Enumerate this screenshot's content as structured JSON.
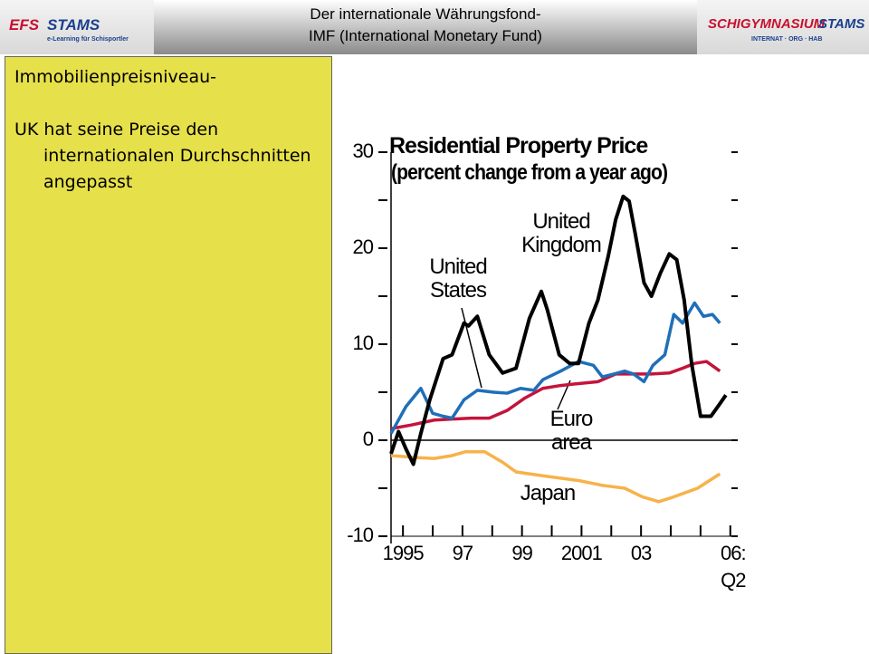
{
  "header": {
    "title_line1": "Der internationale Währungsfond-",
    "title_line2": "IMF (International Monetary Fund)",
    "logo_left": {
      "main1": "EFS",
      "main2": "STAMS",
      "tagline": "e-Learning für Schisportler"
    },
    "logo_right": {
      "main1": "SCHIGYMNASIUM",
      "main2": "STAMS",
      "tagline": "INTERNAT · ORG · HAB"
    }
  },
  "textbox": {
    "heading": "Immobilienpreisniveau-",
    "bullet": "UK hat seine Preise den internationalen Durchschnitten angepasst"
  },
  "chart_data": {
    "type": "line",
    "title": "Residential Property Price",
    "subtitle": "(percent change from a year ago)",
    "xlim": [
      1994.6,
      2006.25
    ],
    "ylim": [
      -10,
      30
    ],
    "yticks": [
      30,
      20,
      10,
      0,
      -10
    ],
    "yminor": [
      25,
      15,
      5,
      -5
    ],
    "xticks": [
      {
        "value": 1995,
        "label": "1995"
      },
      {
        "value": 1997,
        "label": "97"
      },
      {
        "value": 1999,
        "label": "99"
      },
      {
        "value": 2001,
        "label": "2001"
      },
      {
        "value": 2003,
        "label": "03"
      },
      {
        "value": 2006,
        "label": "06: Q2"
      }
    ],
    "xminor": [
      1996,
      1998,
      2000,
      2002,
      2004,
      2005
    ],
    "zero_line": true,
    "series": [
      {
        "name": "United Kingdom",
        "color": "#000000",
        "x": [
          1994.6,
          1994.85,
          1995.1,
          1995.35,
          1995.6,
          1995.9,
          1996.35,
          1996.65,
          1997.05,
          1997.2,
          1997.5,
          1997.9,
          1998.35,
          1998.8,
          1999.25,
          1999.65,
          1999.85,
          2000.25,
          2000.6,
          2000.9,
          2001.25,
          2001.55,
          2001.9,
          2002.15,
          2002.4,
          2002.6,
          2002.8,
          2003.1,
          2003.35,
          2003.65,
          2003.95,
          2004.2,
          2004.45,
          2004.7,
          2005.0,
          2005.35,
          2005.65,
          2005.85
        ],
        "values": [
          -1.4,
          0.9,
          -0.9,
          -2.5,
          0.7,
          4.2,
          8.5,
          8.9,
          12.2,
          11.9,
          12.9,
          8.9,
          7,
          7.5,
          12.7,
          15.5,
          13.6,
          8.9,
          8,
          8,
          12.2,
          14.6,
          19.2,
          23,
          25.4,
          24.9,
          21.6,
          16.4,
          15,
          17.4,
          19.4,
          18.8,
          14.6,
          8,
          2.5,
          2.5,
          3.8,
          4.7
        ]
      },
      {
        "name": "United States",
        "color": "#1f6fb8",
        "x": [
          1994.6,
          1995.1,
          1995.6,
          1996.0,
          1996.35,
          1996.65,
          1997.05,
          1997.5,
          1998.05,
          1998.5,
          1998.95,
          1999.4,
          1999.7,
          2000.3,
          2000.9,
          2001.4,
          2001.7,
          2002.1,
          2002.45,
          2002.75,
          2003.1,
          2003.4,
          2003.8,
          2004.1,
          2004.4,
          2004.8,
          2005.1,
          2005.4,
          2005.65
        ],
        "values": [
          0.7,
          3.5,
          5.4,
          2.8,
          2.5,
          2.3,
          4.2,
          5.2,
          5.0,
          4.9,
          5.4,
          5.2,
          6.3,
          7.2,
          8.2,
          7.8,
          6.6,
          6.9,
          7.2,
          6.9,
          6.1,
          7.8,
          8.9,
          13.1,
          12.2,
          14.3,
          12.9,
          13.1,
          12.2
        ]
      },
      {
        "name": "Euro area",
        "color": "#c4143c",
        "x": [
          1994.6,
          1995.3,
          1996.05,
          1996.65,
          1997.3,
          1997.9,
          1998.5,
          1999.1,
          1999.7,
          2000.3,
          2000.9,
          2001.55,
          2002.15,
          2002.75,
          2003.35,
          2003.95,
          2004.4,
          2004.8,
          2005.2,
          2005.65
        ],
        "values": [
          1.2,
          1.6,
          2.1,
          2.2,
          2.3,
          2.3,
          3.1,
          4.4,
          5.4,
          5.7,
          5.9,
          6.1,
          6.9,
          6.9,
          6.9,
          7.0,
          7.5,
          8.0,
          8.2,
          7.2
        ]
      },
      {
        "name": "Japan",
        "color": "#f7b24a",
        "x": [
          1994.6,
          1995.45,
          1996.05,
          1996.65,
          1997.1,
          1997.75,
          1998.35,
          1998.8,
          1999.7,
          2000.9,
          2001.7,
          2002.45,
          2003.05,
          2003.6,
          2004.1,
          2004.9,
          2005.65
        ],
        "values": [
          -1.6,
          -1.8,
          -1.9,
          -1.6,
          -1.2,
          -1.2,
          -2.3,
          -3.3,
          -3.7,
          -4.2,
          -4.7,
          -5.0,
          -5.9,
          -6.4,
          -5.9,
          -5.0,
          -3.5
        ]
      }
    ]
  }
}
